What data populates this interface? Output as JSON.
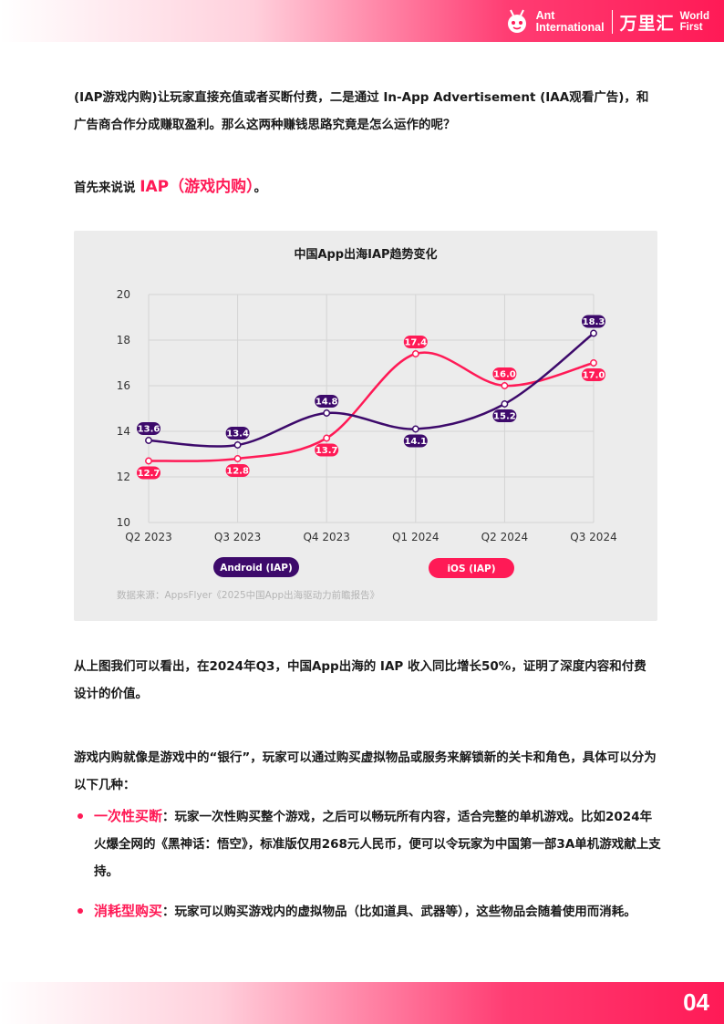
{
  "header": {
    "brand_line1": "Ant",
    "brand_line2": "International",
    "brand_cn": "万里汇",
    "brand_line3": "World",
    "brand_line4": "First"
  },
  "paragraphs": {
    "p1": "(IAP游戏内购)让玩家直接充值或者买断付费，二是通过 In-App Advertisement (IAA观看广告)，和广告商合作分成赚取盈利。那么这两种赚钱思路究竟是怎么运作的呢？",
    "p2_prefix": "首先来说说 ",
    "p2_highlight": "IAP（游戏内购）",
    "p2_suffix": "。",
    "p3": "从上图我们可以看出，在2024年Q3，中国App出海的 IAP 收入同比增长50%，证明了深度内容和付费设计的价值。",
    "p4": "游戏内购就像是游戏中的“银行”，玩家可以通过购买虚拟物品或服务来解锁新的关卡和角色，具体可以分为以下几种："
  },
  "bullets": [
    {
      "keyword": "一次性买断",
      "text": "：玩家一次性购买整个游戏，之后可以畅玩所有内容，适合完整的单机游戏。比如2024年火爆全网的《黑神话：悟空》，标准版仅用268元人民币，便可以令玩家为中国第一部3A单机游戏献上支持。"
    },
    {
      "keyword": "消耗型购买",
      "text": "：玩家可以购买游戏内的虚拟物品（比如道具、武器等），这些物品会随着使用而消耗。"
    }
  ],
  "chart_data": {
    "type": "line",
    "title": "中国App出海IAP趋势变化",
    "categories": [
      "Q2 2023",
      "Q3 2023",
      "Q4 2023",
      "Q1 2024",
      "Q2 2024",
      "Q3 2024"
    ],
    "ylim": [
      10,
      20
    ],
    "yticks": [
      "10",
      "12",
      "14",
      "16",
      "18",
      "20"
    ],
    "grid": true,
    "legend_position": "bottom",
    "series": [
      {
        "name": "Android (IAP)",
        "color": "#3d0a6b",
        "values": [
          13.6,
          13.4,
          14.8,
          14.1,
          15.2,
          18.3
        ],
        "labels": [
          "13.6",
          "13.4",
          "14.8",
          "14.1",
          "15.2",
          "18.3"
        ],
        "label_side": [
          "above",
          "above",
          "above",
          "below",
          "below",
          "above"
        ]
      },
      {
        "name": "iOS (IAP)",
        "color": "#ff1a56",
        "values": [
          12.7,
          12.8,
          13.7,
          17.4,
          16.0,
          17.0
        ],
        "labels": [
          "12.7",
          "12.8",
          "13.7",
          "17.4",
          "16.0",
          "17.0"
        ],
        "label_side": [
          "below",
          "below",
          "below",
          "above",
          "above",
          "below"
        ]
      }
    ],
    "source": "数据来源：AppsFlyer《2025中国App出海驱动力前瞻报告》"
  },
  "footer": {
    "page_number": "04"
  }
}
